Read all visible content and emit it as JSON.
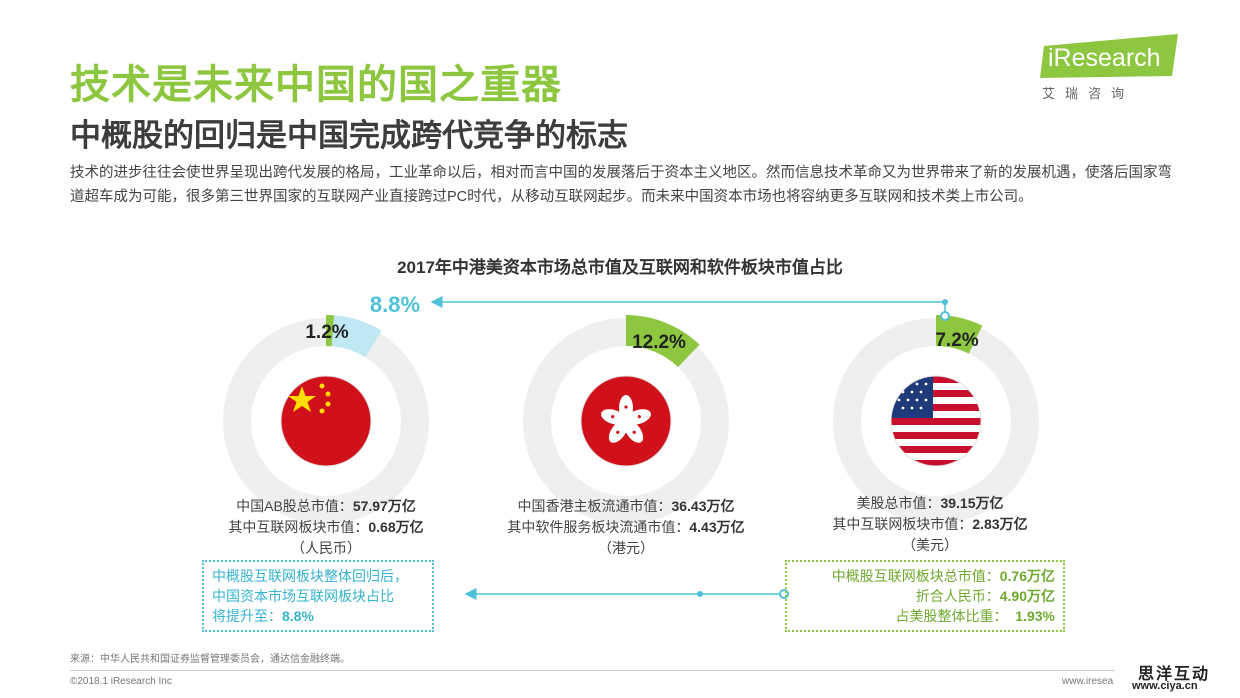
{
  "header": {
    "title": "技术是未来中国的国之重器",
    "subtitle": "中概股的回归是中国完成跨代竞争的标志",
    "intro": "技术的进步往往会使世界呈现出跨代发展的格局，工业革命以后，相对而言中国的发展落后于资本主义地区。然而信息技术革命又为世界带来了新的发展机遇，使落后国家弯道超车成为可能，很多第三世界国家的互联网产业直接跨过PC时代，从移动互联网起步。而未来中国资本市场也将容纳更多互联网和技术类上市公司。"
  },
  "logo": {
    "brand": "iResearch",
    "sub": "艾瑞咨询"
  },
  "colors": {
    "green": "#8dc63f",
    "cyan": "#4fc1d9",
    "ring_bg": "#efefef",
    "flag_red": "#d0101b"
  },
  "chart_data": {
    "type": "pie",
    "title": "2017年中港美资本市场总市值及互联网和软件板块市值占比",
    "series": [
      {
        "market": "china",
        "icon": "china-flag-icon",
        "share_pct": 1.2,
        "share_label": "1.2%",
        "projected_pct": 8.8,
        "projected_label": "8.8%",
        "stats": [
          {
            "label": "中国AB股总市值：",
            "value": "57.97万亿"
          },
          {
            "label": "其中互联网板块市值：",
            "value": "0.68万亿"
          }
        ],
        "unit": "（人民币）"
      },
      {
        "market": "hongkong",
        "icon": "hongkong-flag-icon",
        "share_pct": 12.2,
        "share_label": "12.2%",
        "stats": [
          {
            "label": "中国香港主板流通市值：",
            "value": "36.43万亿"
          },
          {
            "label": "其中软件服务板块流通市值：",
            "value": "4.43万亿"
          }
        ],
        "unit": "（港元）"
      },
      {
        "market": "us",
        "icon": "us-flag-icon",
        "share_pct": 7.2,
        "share_label": "7.2%",
        "stats": [
          {
            "label": "美股总市值：",
            "value": "39.15万亿"
          },
          {
            "label": "其中互联网板块市值：",
            "value": "2.83万亿"
          }
        ],
        "unit": "（美元）"
      }
    ]
  },
  "callouts": {
    "left": {
      "line1": "中概股互联网板块整体回归后，",
      "line2": "中国资本市场互联网板块占比",
      "line3_label": "将提升至：",
      "line3_value": "8.8%"
    },
    "right": {
      "rows": [
        {
          "label": "中概股互联网板块总市值：",
          "value": "0.76万亿"
        },
        {
          "label": "折合人民币：",
          "value": "4.90万亿"
        },
        {
          "label": "占美股整体比重：",
          "value": "1.93%"
        }
      ]
    }
  },
  "footer": {
    "source": "来源：中华人民共和国证券监督管理委员会，通达信金融终端。",
    "copyright": "©2018.1 iResearch Inc",
    "site": "www.iresea",
    "watermark_cn": "思洋互动",
    "watermark_url": "www.ciya.cn"
  }
}
